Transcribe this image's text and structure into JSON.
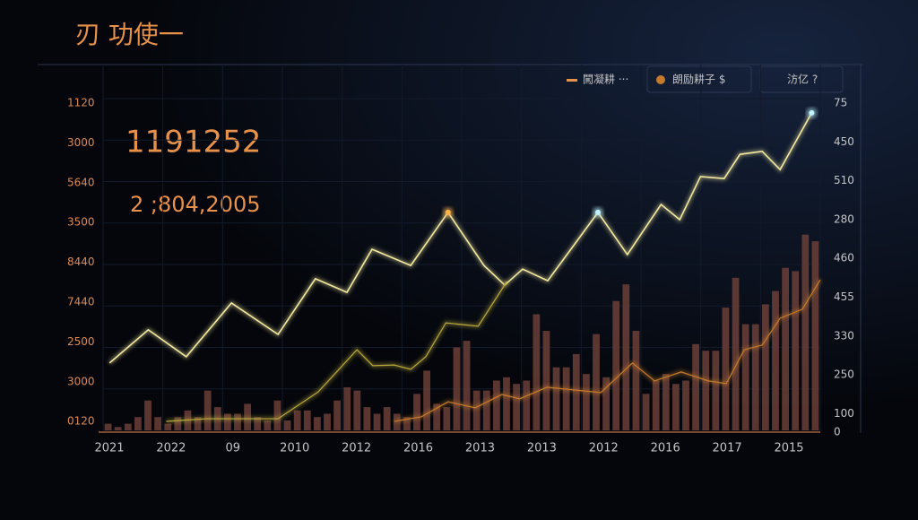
{
  "chart_data": {
    "type": "line",
    "title": "刃 功使一",
    "annotations": [
      "1191252",
      "2 ;804,2005"
    ],
    "left_labels": [
      "1120",
      "3000",
      "5640",
      "3500",
      "8440",
      "7440",
      "2500",
      "3000",
      "0120"
    ],
    "right_labels": [
      "75",
      "450",
      "510",
      "280",
      "460",
      "455",
      "330",
      "250",
      "100",
      "0"
    ],
    "x_labels": [
      "2021",
      "2022",
      "09",
      "2010",
      "2012",
      "2016",
      "2013",
      "2013",
      "2012",
      "2016",
      "2017",
      "2015"
    ],
    "xlim": [
      0,
      100
    ],
    "ylim": [
      0,
      100
    ],
    "grid": true,
    "series": [
      {
        "name": "闖凝耕 ···",
        "color": "#f3e9a0",
        "x": [
          0.9,
          6.3,
          11.6,
          17.9,
          24.4,
          29.6,
          34,
          37.5,
          42.9,
          48.1,
          53.1,
          56,
          58.5,
          62,
          69,
          73.1,
          77.8,
          80.4,
          83.3,
          86.6,
          88.8,
          91.9,
          94.4,
          98.8
        ],
        "values": [
          20.3,
          30.3,
          22.2,
          38.4,
          28.9,
          45.7,
          41.6,
          54.6,
          49.7,
          65.7,
          49.7,
          43.8,
          48.6,
          45.1,
          65.7,
          53,
          68.1,
          63.5,
          76.5,
          75.9,
          83.2,
          84.1,
          78.6,
          95.7
        ]
      },
      {
        "name": "朗励耕子 $",
        "color": "#b9a83c",
        "x": [
          8.8,
          14.4,
          24.4,
          30,
          35.4,
          37.6,
          40.6,
          42.9,
          45,
          47.8,
          52.3,
          56.3
        ],
        "values": [
          2.7,
          3.5,
          3.5,
          11.6,
          24.3,
          19.5,
          19.7,
          18.4,
          22.2,
          32.4,
          31.4,
          44.9
        ]
      },
      {
        "name": "汸亿 ?",
        "color": "#c47a2c",
        "x": [
          40.6,
          44.4,
          48.1,
          51.9,
          55.6,
          58.1,
          61.9,
          65.6,
          69.4,
          73.8,
          76.9,
          80.6,
          84.4,
          86.9,
          89.4,
          91.9,
          94.4,
          97.5,
          100
        ],
        "values": [
          2.7,
          4.1,
          8.6,
          6.8,
          10.8,
          9.5,
          13,
          12.2,
          11.4,
          20.3,
          14.9,
          17.6,
          14.9,
          14.1,
          24.3,
          25.7,
          33.8,
          36.5,
          45.4
        ]
      }
    ],
    "bars": {
      "color": "#6b3f38",
      "values": [
        2,
        1,
        2,
        4,
        9,
        4,
        2,
        4,
        6,
        4,
        12,
        7,
        5,
        5,
        8,
        4,
        3,
        9,
        3,
        6,
        6,
        4,
        5,
        9,
        13,
        12,
        7,
        5,
        7,
        5,
        4,
        11,
        18,
        8,
        7,
        25,
        27,
        12,
        12,
        15,
        16,
        14,
        15,
        35,
        30,
        19,
        19,
        23,
        17,
        29,
        16,
        39,
        44,
        30,
        11,
        15,
        17,
        14,
        15,
        26,
        24,
        24,
        37,
        46,
        32,
        32,
        38,
        42,
        49,
        48,
        59,
        57
      ]
    }
  }
}
